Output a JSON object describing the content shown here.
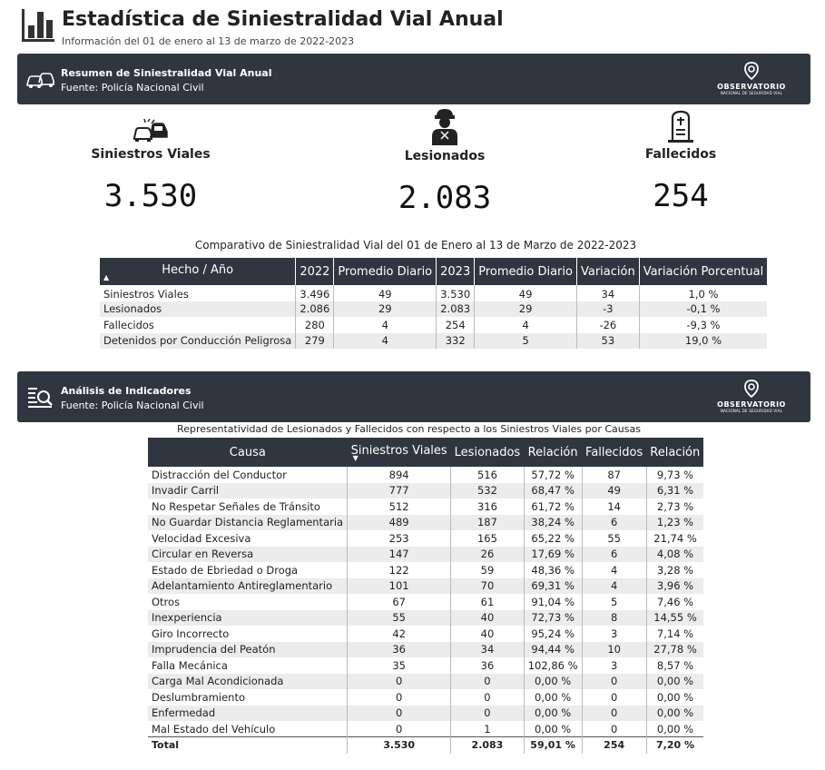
{
  "header": {
    "title": "Estadística de Siniestralidad Vial Anual",
    "subtitle": "Información del 01 de enero al 13 de marzo de 2022-2023"
  },
  "banner_resumen": {
    "title": "Resumen de Siniestralidad Vial Anual",
    "source": "Fuente: Policía Nacional Civil"
  },
  "banner_analisis": {
    "title": "Análisis de Indicadores",
    "source": "Fuente: Policía Nacional Civil"
  },
  "observatorio_logo": {
    "name": "OBSERVATORIO",
    "subtitle": "NACIONAL DE SEGURIDAD VIAL"
  },
  "kpis": {
    "siniestros": {
      "label": "Siniestros Viales",
      "value": "3.530"
    },
    "lesionados": {
      "label": "Lesionados",
      "value": "2.083"
    },
    "fallecidos": {
      "label": "Fallecidos",
      "value": "254"
    }
  },
  "comparativo": {
    "title": "Comparativo de Siniestralidad Vial del 01 de Enero al 13 de Marzo de 2022-2023",
    "headers": [
      "Hecho / Año",
      "2022",
      "Promedio Diario",
      "2023",
      "Promedio Diario",
      "Variación",
      "Variación Porcentual"
    ],
    "rows": [
      [
        "Siniestros Viales",
        "3.496",
        "49",
        "3.530",
        "49",
        "34",
        "1,0 %"
      ],
      [
        "Lesionados",
        "2.086",
        "29",
        "2.083",
        "29",
        "-3",
        "-0,1 %"
      ],
      [
        "Fallecidos",
        "280",
        "4",
        "254",
        "4",
        "-26",
        "-9,3 %"
      ],
      [
        "Detenidos por Conducción Peligrosa",
        "279",
        "4",
        "332",
        "5",
        "53",
        "19,0 %"
      ]
    ]
  },
  "causas": {
    "title": "Representatividad de Lesionados y Fallecidos con respecto a los Siniestros Viales por Causas",
    "headers": [
      "Causa",
      "Siniestros Viales",
      "Lesionados",
      "Relación",
      "Fallecidos",
      "Relación"
    ],
    "rows": [
      [
        "Distracción del Conductor",
        "894",
        "516",
        "57,72 %",
        "87",
        "9,73 %"
      ],
      [
        "Invadir Carril",
        "777",
        "532",
        "68,47 %",
        "49",
        "6,31 %"
      ],
      [
        "No Respetar Señales de Tránsito",
        "512",
        "316",
        "61,72 %",
        "14",
        "2,73 %"
      ],
      [
        "No Guardar Distancia Reglamentaria",
        "489",
        "187",
        "38,24 %",
        "6",
        "1,23 %"
      ],
      [
        "Velocidad Excesiva",
        "253",
        "165",
        "65,22 %",
        "55",
        "21,74 %"
      ],
      [
        "Circular en Reversa",
        "147",
        "26",
        "17,69 %",
        "6",
        "4,08 %"
      ],
      [
        "Estado de Ebriedad o Droga",
        "122",
        "59",
        "48,36 %",
        "4",
        "3,28 %"
      ],
      [
        "Adelantamiento Antireglamentario",
        "101",
        "70",
        "69,31 %",
        "4",
        "3,96 %"
      ],
      [
        "Otros",
        "67",
        "61",
        "91,04 %",
        "5",
        "7,46 %"
      ],
      [
        "Inexperiencia",
        "55",
        "40",
        "72,73 %",
        "8",
        "14,55 %"
      ],
      [
        "Giro Incorrecto",
        "42",
        "40",
        "95,24 %",
        "3",
        "7,14 %"
      ],
      [
        "Imprudencia del Peatón",
        "36",
        "34",
        "94,44 %",
        "10",
        "27,78 %"
      ],
      [
        "Falla Mecánica",
        "35",
        "36",
        "102,86 %",
        "3",
        "8,57 %"
      ],
      [
        "Carga Mal Acondicionada",
        "0",
        "0",
        "0,00 %",
        "0",
        "0,00 %"
      ],
      [
        "Deslumbramiento",
        "0",
        "0",
        "0,00 %",
        "0",
        "0,00 %"
      ],
      [
        "Enfermedad",
        "0",
        "0",
        "0,00 %",
        "0",
        "0,00 %"
      ],
      [
        "Mal Estado del Vehículo",
        "0",
        "1",
        "0,00 %",
        "0",
        "0,00 %"
      ]
    ],
    "total": [
      "Total",
      "3.530",
      "2.083",
      "59,01 %",
      "254",
      "7,20 %"
    ]
  },
  "colors": {
    "banner_bg": "#2f3640",
    "header_bg": "#2f3640",
    "row_alt": "#ececec"
  },
  "icons": {
    "logo": "bar-chart-icon",
    "banner_resumen": "car-crash-icon",
    "banner_analisis": "search-analysis-icon",
    "kpi_siniestros": "car-crash-icon",
    "kpi_lesionados": "injured-person-icon",
    "kpi_fallecidos": "tombstone-icon",
    "observatorio": "location-pin-icon"
  }
}
